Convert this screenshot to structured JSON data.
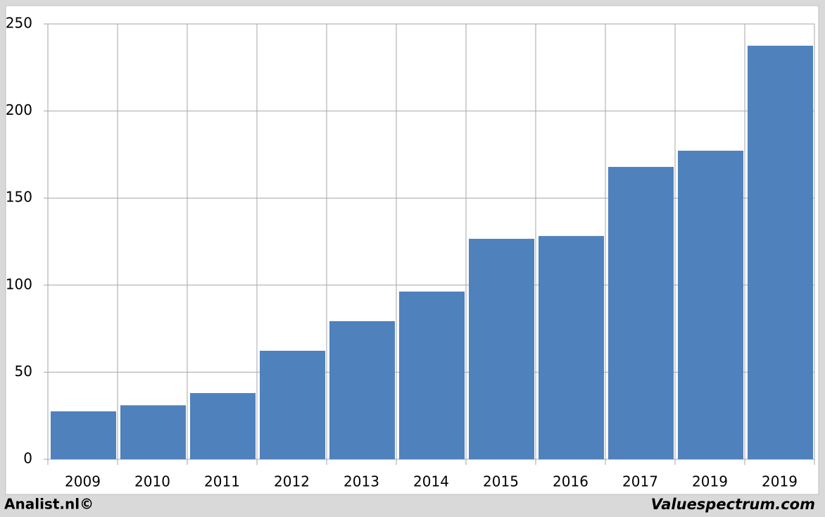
{
  "chart_data": {
    "type": "bar",
    "categories": [
      "2009",
      "2010",
      "2011",
      "2012",
      "2013",
      "2014",
      "2015",
      "2016",
      "2017",
      "2019",
      "2019"
    ],
    "values": [
      27.5,
      31,
      38,
      62.3,
      79.3,
      96.3,
      126.6,
      128.2,
      167.9,
      177.2,
      237.5
    ],
    "color": "#4f81bd",
    "ylim": [
      0,
      250
    ],
    "yticks": [
      0,
      50,
      100,
      150,
      200,
      250
    ],
    "grid": true,
    "source": "Analist.nl©",
    "credit": "Valuespectrum.com"
  }
}
